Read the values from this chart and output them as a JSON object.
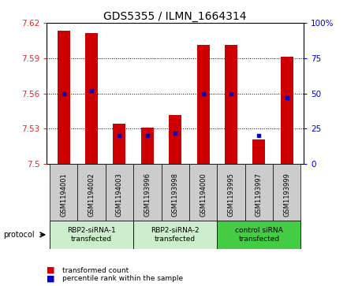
{
  "title": "GDS5355 / ILMN_1664314",
  "samples": [
    "GSM1194001",
    "GSM1194002",
    "GSM1194003",
    "GSM1193996",
    "GSM1193998",
    "GSM1194000",
    "GSM1193995",
    "GSM1193997",
    "GSM1193999"
  ],
  "transformed_count": [
    7.613,
    7.611,
    7.534,
    7.531,
    7.542,
    7.601,
    7.601,
    7.521,
    7.591
  ],
  "percentile_rank": [
    50,
    52,
    20,
    20,
    22,
    50,
    50,
    20,
    47
  ],
  "ylim_left": [
    7.5,
    7.62
  ],
  "ylim_right": [
    0,
    100
  ],
  "yticks_left": [
    7.5,
    7.53,
    7.56,
    7.59,
    7.62
  ],
  "ytick_labels_left": [
    "7.5",
    "7.53",
    "7.56",
    "7.59",
    "7.62"
  ],
  "yticks_right": [
    0,
    25,
    50,
    75,
    100
  ],
  "ytick_labels_right": [
    "0",
    "25",
    "50",
    "75",
    "100%"
  ],
  "bar_color": "#cc0000",
  "dot_color": "#0000cc",
  "group_info": [
    {
      "start": 0,
      "end": 2,
      "color": "#cceecc",
      "label": "RBP2-siRNA-1\ntransfected"
    },
    {
      "start": 3,
      "end": 5,
      "color": "#cceecc",
      "label": "RBP2-siRNA-2\ntransfected"
    },
    {
      "start": 6,
      "end": 8,
      "color": "#44cc44",
      "label": "control siRNA\ntransfected"
    }
  ],
  "legend": [
    {
      "label": "transformed count",
      "color": "#cc0000"
    },
    {
      "label": "percentile rank within the sample",
      "color": "#0000cc"
    }
  ],
  "sample_bg": "#cccccc",
  "plot_bg": "#ffffff",
  "title_fontsize": 10,
  "tick_fontsize": 7.5,
  "bar_width": 0.45
}
